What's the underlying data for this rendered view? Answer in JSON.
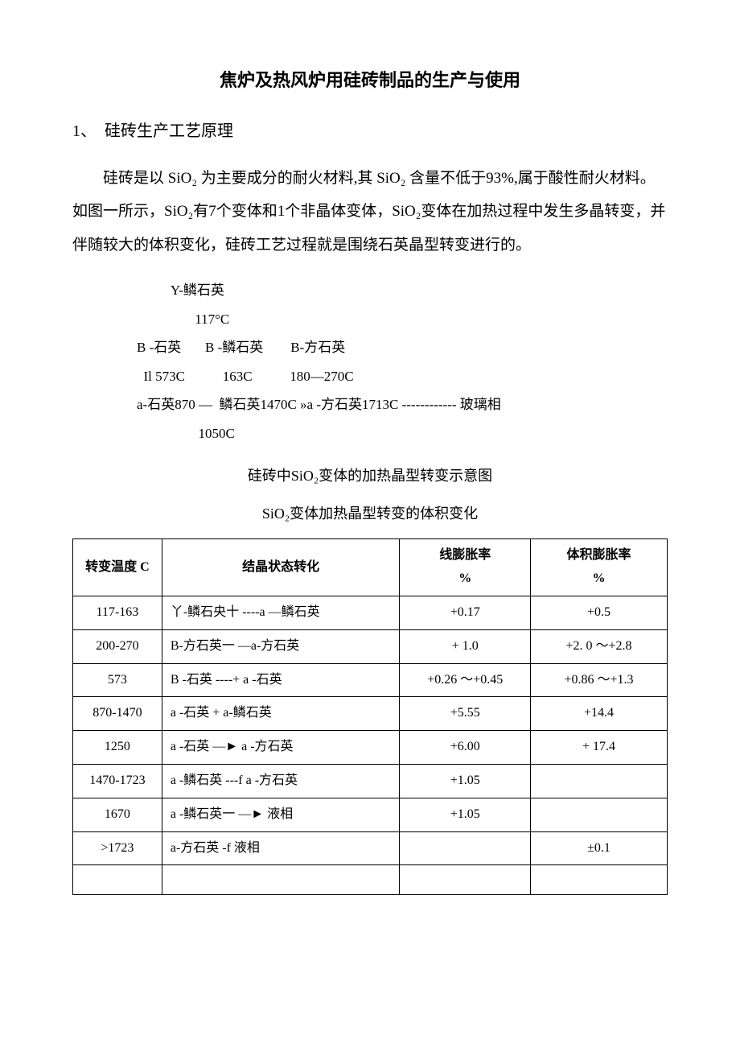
{
  "title": "焦炉及热风炉用硅砖制品的生产与使用",
  "section1": {
    "number": "1、",
    "heading": "硅砖生产工艺原理"
  },
  "paragraph1": "硅砖是以 SiO₂ 为主要成分的耐火材料,其 SiO₂ 含量不低于93%,属于酸性耐火材料。如图一所示，SiO₂有7个变体和1个非晶体变体，SiO₂变体在加热过程中发生多晶转变，并伴随较大的体积变化，硅砖工艺过程就是围绕石英晶型转变进行的。",
  "diagram": {
    "line1": "          Y-鳞石英",
    "line2": "",
    "line3": "                 117°C",
    "line4": "B -石英       B -鳞石英        B-方石英",
    "line5": "  Il 573C           163C           180—270C",
    "line6": "a-石英870 —  鳞石英1470C »a -方石英1713C ------------ 玻璃相",
    "line7": "",
    "line8": "                  1050C"
  },
  "caption1": "硅砖中SiO₂变体的加热晶型转变示意图",
  "caption2": "SiO₂变体加热晶型转变的体积变化",
  "table": {
    "headers": {
      "col1": "转变温度 C",
      "col2": "结晶状态转化",
      "col3_line1": "线膨胀率",
      "col3_line2": "%",
      "col4_line1": "体积膨胀率",
      "col4_line2": "%"
    },
    "rows": [
      {
        "temp": "117-163",
        "change": "丫-鳞石央十 ----a —鳞石英",
        "linear": "+0.17",
        "vol": "+0.5"
      },
      {
        "temp": "200-270",
        "change": "B-方石英一   —a-方石英",
        "linear": "+ 1.0",
        "vol": "+2. 0 ～+2.8"
      },
      {
        "temp": "573",
        "change": "B -石英  ----+ a -石英",
        "linear": "+0.26 ～+0.45",
        "vol": "+0.86 ～+1.3"
      },
      {
        "temp": "870-1470",
        "change": "a -石英     + a-鳞石英",
        "linear": "+5.55",
        "vol": "+14.4"
      },
      {
        "temp": "1250",
        "change": "a -石英    —► a -方石英",
        "linear": "+6.00",
        "vol": "+ 17.4"
      },
      {
        "temp": "1470-1723",
        "change": "a -鳞石英 ---f a -方石英",
        "linear": "+1.05",
        "vol": ""
      },
      {
        "temp": "1670",
        "change": "a -鳞石英一  —► 液相",
        "linear": "+1.05",
        "vol": ""
      },
      {
        "temp": ">1723",
        "change": "a-方石英    -f 液相",
        "linear": "",
        "vol": "±0.1"
      }
    ]
  },
  "styling": {
    "background_color": "#ffffff",
    "text_color": "#000000",
    "border_color": "#000000",
    "font_family": "SimSun",
    "title_fontsize": 22,
    "body_fontsize": 18,
    "table_fontsize": 16
  }
}
